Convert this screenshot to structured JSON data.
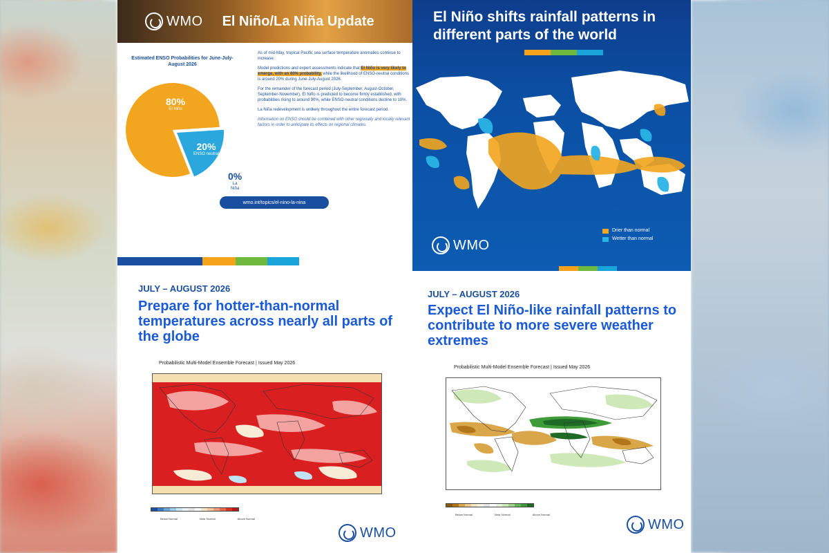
{
  "brand": "WMO",
  "panel1": {
    "title": "El Niño/La Niña Update",
    "pie_title": "Estimated ENSO Probabilities for June-July-August 2026",
    "slices": [
      {
        "pct": "80%",
        "label": "El Niño",
        "value": 80,
        "color": "#f2a51e"
      },
      {
        "pct": "20%",
        "label": "ENSO neutral",
        "value": 20,
        "color": "#2aa7dc"
      },
      {
        "pct": "0%",
        "label": "La Niña",
        "value": 0,
        "color": "#1a4fa0"
      }
    ],
    "para1": "As of mid-May, tropical Pacific sea surface temperature anomalies continue to increase.",
    "para2_pre": "Model predictions and expert assessments indicate that",
    "para2_highlight": "El Niño is very likely to emerge, with an 80% probability,",
    "para2_post": "while the likelihood of ENSO-neutral conditions is around 20% during June-July-August 2026.",
    "para3": "For the remainder of the forecast period (July-September, August-October, September-November), El Niño is predicted to become firmly established, with probabilities rising to around 90%, while ENSO-neutral conditions decline to 10%.",
    "para4": "La Niña redevelopment is unlikely throughout the entire forecast period.",
    "para5": "Information on ENSO should be combined with other regionally and locally relevant factors in order to anticipate its effects on regional climates.",
    "link": "wmo.int/topics/el-nino-la-nina"
  },
  "panel2": {
    "title": "El Niño shifts rainfall patterns in different parts of the world",
    "legend": [
      {
        "label": "Drier than normal",
        "color": "#f2a51e"
      },
      {
        "label": "Wetter than normal",
        "color": "#2ab4e6"
      }
    ]
  },
  "panel3": {
    "date": "JULY – AUGUST 2026",
    "title": "Prepare for hotter-than-normal temperatures across nearly all parts of the globe",
    "forecast_title": "Probabilistic Multi-Model Ensemble Forecast | Issued May 2026",
    "scale_labels": [
      "Below Normal",
      "Near Normal",
      "Above Normal"
    ]
  },
  "panel4": {
    "date": "JULY – AUGUST 2026",
    "title": "Expect El Niño-like rainfall patterns to contribute to more severe weather extremes",
    "forecast_title": "Probabilistic Multi-Model Ensemble Forecast | Issued May 2026",
    "scale_labels": [
      "Below Normal",
      "Near Normal",
      "Above Normal"
    ]
  }
}
